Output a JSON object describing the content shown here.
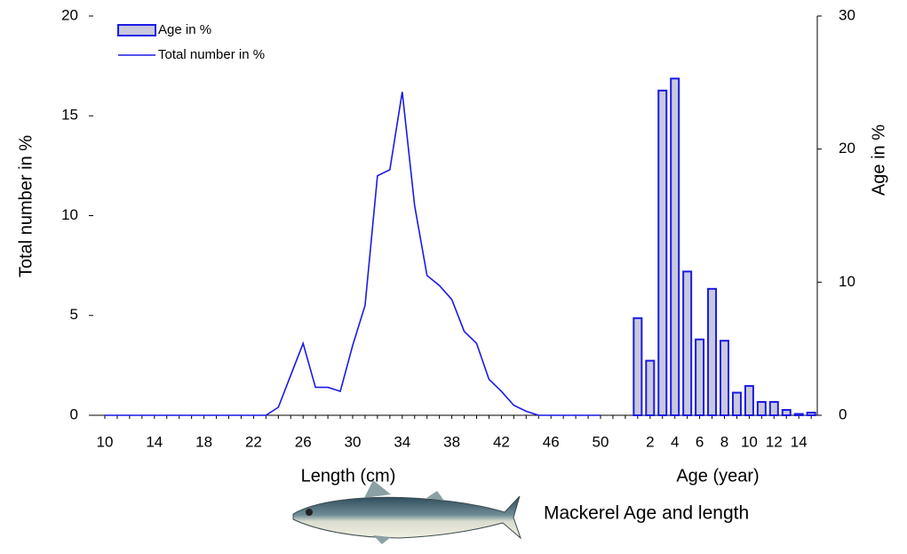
{
  "chart_data": {
    "type": "combo",
    "x_labels": [
      "Length  (cm)",
      "Age (year)"
    ],
    "ylabel": "Total number in %",
    "y2label": "Age in %",
    "annotation": "Mackerel  Age and length",
    "categories": [
      "10",
      null,
      null,
      null,
      "14",
      null,
      null,
      null,
      "18",
      null,
      null,
      null,
      "22",
      null,
      null,
      null,
      "26",
      null,
      null,
      null,
      "30",
      null,
      null,
      null,
      "34",
      null,
      null,
      null,
      "38",
      null,
      null,
      null,
      "42",
      null,
      null,
      null,
      "46",
      null,
      null,
      null,
      "50",
      null,
      null,
      null,
      "2",
      null,
      "4",
      null,
      "6",
      null,
      "8",
      null,
      "10",
      null,
      "12",
      null,
      "14",
      null
    ],
    "series": [
      {
        "name": "Age in %",
        "type": "bar",
        "axis": "y2",
        "color": "#1a1ae6",
        "fill": "#c9c9dc",
        "values": [
          null,
          null,
          null,
          null,
          null,
          null,
          null,
          null,
          null,
          null,
          null,
          null,
          null,
          null,
          null,
          null,
          null,
          null,
          null,
          null,
          null,
          null,
          null,
          null,
          null,
          null,
          null,
          null,
          null,
          null,
          null,
          null,
          null,
          null,
          null,
          null,
          null,
          null,
          null,
          null,
          null,
          null,
          null,
          7.3,
          4.1,
          24.4,
          25.3,
          10.8,
          5.7,
          9.5,
          5.6,
          1.7,
          2.2,
          1,
          1,
          0.4,
          0.1,
          0.2
        ]
      },
      {
        "name": "Total number in %",
        "type": "line",
        "color": "#1a1ae6",
        "values": [
          0,
          0,
          0,
          0,
          0,
          0,
          0,
          0,
          0,
          0,
          0,
          0,
          0,
          0,
          0.4,
          2,
          3.6,
          1.4,
          1.4,
          1.2,
          3.5,
          5.5,
          12,
          12.3,
          16.2,
          10.5,
          7,
          6.5,
          5.8,
          4.2,
          3.6,
          1.8,
          1.2,
          0.5,
          0.2,
          0,
          0,
          0,
          0,
          0,
          0,
          null,
          null,
          null,
          null,
          null,
          null,
          null,
          null,
          null,
          null,
          null,
          null,
          null,
          null,
          null,
          null,
          null
        ]
      }
    ],
    "ylim": [
      0,
      20
    ],
    "yticks": [
      0,
      5,
      10,
      15,
      20
    ],
    "y2lim": [
      0,
      30
    ],
    "y2ticks": [
      0,
      10,
      20,
      30
    ],
    "legend": "top-left"
  }
}
